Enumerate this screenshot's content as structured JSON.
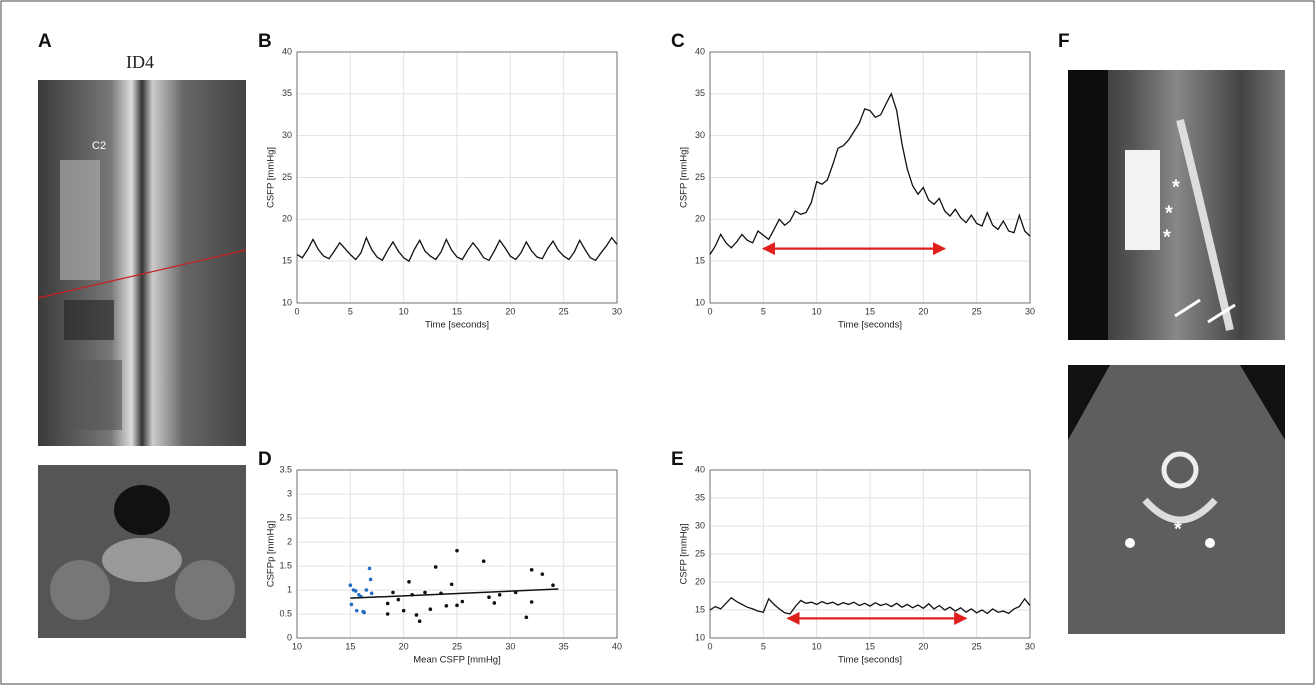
{
  "panels": {
    "A": {
      "label": "A",
      "title": "ID4",
      "annotation": "C2"
    },
    "F": {
      "label": "F",
      "markers": [
        "*",
        "*",
        "*",
        "*"
      ]
    }
  },
  "chart_data": [
    {
      "type": "line",
      "label": "B",
      "xlabel": "Time [seconds]",
      "ylabel": "CSFP [mmHg]",
      "xlim": [
        0,
        30
      ],
      "ylim": [
        10,
        40
      ],
      "xticks": [
        0,
        5,
        10,
        15,
        20,
        25,
        30
      ],
      "yticks": [
        10,
        15,
        20,
        25,
        30,
        35,
        40
      ],
      "grid": true,
      "x": [
        0,
        0.5,
        1,
        1.5,
        2,
        2.5,
        3,
        3.5,
        4,
        4.5,
        5,
        5.5,
        6,
        6.5,
        7,
        7.5,
        8,
        8.5,
        9,
        9.5,
        10,
        10.5,
        11,
        11.5,
        12,
        12.5,
        13,
        13.5,
        14,
        14.5,
        15,
        15.5,
        16,
        16.5,
        17,
        17.5,
        18,
        18.5,
        19,
        19.5,
        20,
        20.5,
        21,
        21.5,
        22,
        22.5,
        23,
        23.5,
        24,
        24.5,
        25,
        25.5,
        26,
        26.5,
        27,
        27.5,
        28,
        28.5,
        29,
        29.5,
        30
      ],
      "series": [
        {
          "color": "#111111",
          "values": [
            15.8,
            15.4,
            16.4,
            17.6,
            16.4,
            15.6,
            15.3,
            16.2,
            17.2,
            16.5,
            15.8,
            15.2,
            16.0,
            17.8,
            16.4,
            15.5,
            15.1,
            16.3,
            17.3,
            16.2,
            15.4,
            15.0,
            16.4,
            17.5,
            16.2,
            15.6,
            15.2,
            16.1,
            17.6,
            16.3,
            15.5,
            15.2,
            16.3,
            17.2,
            16.4,
            15.4,
            15.1,
            16.2,
            17.5,
            16.6,
            15.6,
            15.2,
            16.0,
            17.3,
            16.2,
            15.5,
            15.3,
            16.5,
            17.4,
            16.3,
            15.6,
            15.2,
            16.1,
            17.5,
            16.4,
            15.4,
            15.1,
            16.0,
            16.8,
            17.8,
            17.0
          ]
        }
      ]
    },
    {
      "type": "line",
      "label": "C",
      "xlabel": "Time [seconds]",
      "ylabel": "CSFP [mmHg]",
      "xlim": [
        0,
        30
      ],
      "ylim": [
        10,
        40
      ],
      "xticks": [
        0,
        5,
        10,
        15,
        20,
        25,
        30
      ],
      "yticks": [
        10,
        15,
        20,
        25,
        30,
        35,
        40
      ],
      "grid": true,
      "x": [
        0,
        0.5,
        1,
        1.5,
        2,
        2.5,
        3,
        3.5,
        4,
        4.5,
        5,
        5.5,
        6,
        6.5,
        7,
        7.5,
        8,
        8.5,
        9,
        9.5,
        10,
        10.5,
        11,
        11.5,
        12,
        12.5,
        13,
        13.5,
        14,
        14.5,
        15,
        15.5,
        16,
        16.5,
        17,
        17.5,
        18,
        18.5,
        19,
        19.5,
        20,
        20.5,
        21,
        21.5,
        22,
        22.5,
        23,
        23.5,
        24,
        24.5,
        25,
        25.5,
        26,
        26.5,
        27,
        27.5,
        28,
        28.5,
        29,
        29.5,
        30
      ],
      "series": [
        {
          "color": "#111111",
          "values": [
            15.8,
            16.8,
            18.2,
            17.2,
            16.6,
            17.3,
            18.2,
            17.5,
            17.2,
            18.6,
            18.1,
            17.6,
            18.8,
            20.0,
            19.3,
            19.8,
            21.0,
            20.6,
            20.8,
            22.0,
            24.5,
            24.2,
            24.7,
            26.5,
            28.5,
            28.8,
            29.5,
            30.5,
            31.5,
            33.2,
            33.0,
            32.2,
            32.5,
            33.8,
            35.0,
            33.0,
            29.0,
            26.0,
            24.0,
            23.0,
            23.8,
            22.3,
            21.8,
            22.5,
            21.0,
            20.4,
            21.2,
            20.2,
            19.6,
            20.5,
            19.5,
            19.2,
            20.8,
            19.3,
            18.8,
            19.8,
            18.6,
            18.4,
            20.5,
            18.6,
            18.0
          ]
        }
      ],
      "arrow": {
        "x0": 5,
        "x1": 22,
        "y": 16.5,
        "color": "#e0201c"
      }
    },
    {
      "type": "scatter",
      "label": "D",
      "xlabel": "Mean CSFP [mmHg]",
      "ylabel": "CSFPp [mmHg]",
      "xlim": [
        10,
        40
      ],
      "ylim": [
        0,
        3.5
      ],
      "xticks": [
        10,
        15,
        20,
        25,
        30,
        35,
        40
      ],
      "yticks": [
        0,
        0.5,
        1,
        1.5,
        2,
        2.5,
        3,
        3.5
      ],
      "grid": true,
      "series": [
        {
          "color": "#1f6fc4",
          "x": [
            15,
            15.1,
            15.3,
            15.5,
            15.6,
            15.8,
            16,
            16.2,
            16.3,
            16.5,
            16.8,
            16.9,
            17
          ],
          "values": [
            1.1,
            0.7,
            1.0,
            0.98,
            0.57,
            0.9,
            0.86,
            0.55,
            0.53,
            1.0,
            1.45,
            1.22,
            0.93
          ]
        },
        {
          "color": "#111111",
          "x": [
            18.5,
            18.5,
            19,
            19.5,
            20,
            20.5,
            20.8,
            21.2,
            21.5,
            22,
            22.5,
            23,
            23.5,
            24,
            24.5,
            25,
            25,
            25.5,
            27.5,
            28,
            28.5,
            29,
            30.5,
            31.5,
            32,
            32,
            33,
            34
          ],
          "values": [
            0.72,
            0.5,
            0.95,
            0.8,
            0.57,
            1.17,
            0.9,
            0.48,
            0.35,
            0.95,
            0.6,
            1.48,
            0.93,
            0.67,
            1.12,
            0.68,
            1.82,
            0.76,
            1.6,
            0.85,
            0.73,
            0.9,
            0.95,
            0.43,
            1.42,
            0.75,
            1.33,
            1.1
          ]
        }
      ],
      "fit": {
        "color": "#111111",
        "x": [
          15,
          34.5
        ],
        "values": [
          0.83,
          1.02
        ]
      }
    },
    {
      "type": "line",
      "label": "E",
      "xlabel": "Time [seconds]",
      "ylabel": "CSFP [mmHg]",
      "xlim": [
        0,
        30
      ],
      "ylim": [
        10,
        40
      ],
      "xticks": [
        0,
        5,
        10,
        15,
        20,
        25,
        30
      ],
      "yticks": [
        10,
        15,
        20,
        25,
        30,
        35,
        40
      ],
      "grid": true,
      "x": [
        0,
        0.5,
        1,
        1.5,
        2,
        2.5,
        3,
        3.5,
        4,
        4.5,
        5,
        5.5,
        6,
        6.5,
        7,
        7.5,
        8,
        8.5,
        9,
        9.5,
        10,
        10.5,
        11,
        11.5,
        12,
        12.5,
        13,
        13.5,
        14,
        14.5,
        15,
        15.5,
        16,
        16.5,
        17,
        17.5,
        18,
        18.5,
        19,
        19.5,
        20,
        20.5,
        21,
        21.5,
        22,
        22.5,
        23,
        23.5,
        24,
        24.5,
        25,
        25.5,
        26,
        26.5,
        27,
        27.5,
        28,
        28.5,
        29,
        29.5,
        30
      ],
      "series": [
        {
          "color": "#111111",
          "values": [
            15.0,
            15.6,
            15.2,
            16.2,
            17.2,
            16.5,
            16.0,
            15.5,
            15.2,
            14.8,
            14.6,
            17.0,
            16.0,
            15.2,
            14.5,
            14.3,
            15.6,
            16.7,
            16.2,
            16.4,
            16.0,
            16.5,
            16.1,
            16.4,
            15.9,
            16.3,
            16.0,
            16.4,
            15.8,
            16.2,
            15.7,
            16.3,
            15.8,
            16.1,
            15.6,
            16.2,
            15.5,
            16.0,
            15.4,
            15.9,
            15.3,
            16.1,
            15.2,
            15.8,
            15.0,
            15.5,
            14.8,
            15.4,
            14.6,
            15.2,
            14.5,
            15.0,
            14.4,
            15.2,
            14.6,
            14.8,
            14.4,
            15.2,
            15.6,
            17.0,
            15.8
          ]
        }
      ],
      "arrow": {
        "x0": 7.3,
        "x1": 24,
        "y": 13.5,
        "color": "#e0201c"
      }
    }
  ]
}
